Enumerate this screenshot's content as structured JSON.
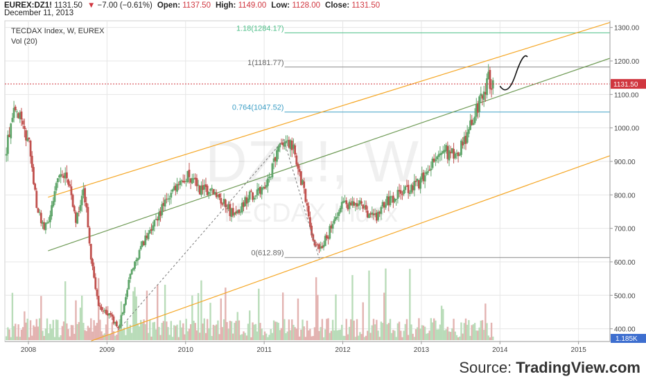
{
  "header": {
    "symbol": "EUREX:DZ1!",
    "last": "1131.50",
    "change": "−7.00 (−0.61%)",
    "open_label": "Open:",
    "open": "1137.50",
    "high_label": "High:",
    "high": "1149.00",
    "low_label": "Low:",
    "low": "1128.00",
    "close_label": "Close:",
    "close": "1131.50",
    "date": "December 11, 2013"
  },
  "legend": {
    "line1": "TECDAX Index, W, EUREX",
    "line2": "Vol (20)"
  },
  "watermark": {
    "big": "DZ1!, W",
    "small": "TECDAX Index"
  },
  "source": {
    "prefix": "Source: ",
    "brand": "TradingView.com"
  },
  "colors": {
    "up": "#5fa56a",
    "down": "#c0504d",
    "fib_green": "#4dbf88",
    "fib_gray": "#888888",
    "fib_blue": "#3d9fc6",
    "channel_orange": "#f5a623",
    "channel_green": "#6e9a55",
    "price_line": "#d0363f",
    "grid": "#e6e6e6"
  },
  "chart_data": {
    "type": "candlestick",
    "title": "TECDAX Index, W, EUREX",
    "x_ticks": [
      "2008",
      "2009",
      "2010",
      "2011",
      "2012",
      "2013",
      "2014",
      "2015"
    ],
    "x_tick_years": [
      2008,
      2009,
      2010,
      2011,
      2012,
      2013,
      2014,
      2015
    ],
    "xlim": [
      2007.7,
      2015.4
    ],
    "y_ticks": [
      "1300.00",
      "1200.00",
      "1100.00",
      "1000.00",
      "900.00",
      "800.00",
      "700.00",
      "600.00",
      "500.00",
      "400.00"
    ],
    "ylim": [
      362,
      1320
    ],
    "last_price": {
      "value": 1131.5,
      "label": "1131.50"
    },
    "volume_label": "1.185K",
    "fib_levels": [
      {
        "label": "1.18(1284.17)",
        "value": 1284.17,
        "color": "#4dbf88"
      },
      {
        "label": "1(1181.77)",
        "value": 1181.77,
        "color": "#888888"
      },
      {
        "label": "0.764(1047.52)",
        "value": 1047.52,
        "color": "#3d9fc6"
      },
      {
        "label": "0(612.89)",
        "value": 612.89,
        "color": "#888888"
      }
    ],
    "channel_lines": [
      {
        "name": "upper",
        "color": "#f5a623",
        "x": [
          2008.25,
          2015.45
        ],
        "y": [
          793,
          1315
        ]
      },
      {
        "name": "middle",
        "color": "#6e9a55",
        "x": [
          2008.25,
          2015.45
        ],
        "y": [
          633,
          1208
        ]
      },
      {
        "name": "lower",
        "color": "#f5a623",
        "x": [
          2008.8,
          2015.45
        ],
        "y": [
          364,
          917
        ]
      }
    ],
    "zigzag": {
      "x": [
        2009.15,
        2011.25,
        2011.7
      ],
      "y": [
        398,
        965,
        610
      ]
    },
    "projection": {
      "x": [
        2014.0,
        2014.1,
        2014.2,
        2014.35
      ],
      "y": [
        1125,
        1120,
        1160,
        1212
      ]
    },
    "price_path": {
      "x": [
        2007.7,
        2007.8,
        2007.9,
        2008.0,
        2008.1,
        2008.2,
        2008.3,
        2008.4,
        2008.5,
        2008.6,
        2008.7,
        2008.75,
        2008.8,
        2008.9,
        2009.0,
        2009.15,
        2009.3,
        2009.5,
        2009.7,
        2009.9,
        2010.0,
        2010.2,
        2010.4,
        2010.6,
        2010.8,
        2011.0,
        2011.2,
        2011.35,
        2011.5,
        2011.6,
        2011.7,
        2011.85,
        2012.0,
        2012.2,
        2012.4,
        2012.6,
        2012.8,
        2012.95,
        2013.1,
        2013.3,
        2013.45,
        2013.6,
        2013.75,
        2013.85,
        2013.93
      ],
      "y": [
        920,
        1040,
        1030,
        960,
        780,
        700,
        760,
        870,
        860,
        720,
        800,
        730,
        600,
        460,
        450,
        405,
        560,
        680,
        760,
        830,
        860,
        815,
        800,
        740,
        790,
        820,
        940,
        950,
        820,
        680,
        630,
        700,
        770,
        770,
        730,
        790,
        810,
        830,
        880,
        930,
        920,
        990,
        1080,
        1145,
        1131
      ]
    },
    "volume_ylim": [
      0,
      80
    ]
  }
}
